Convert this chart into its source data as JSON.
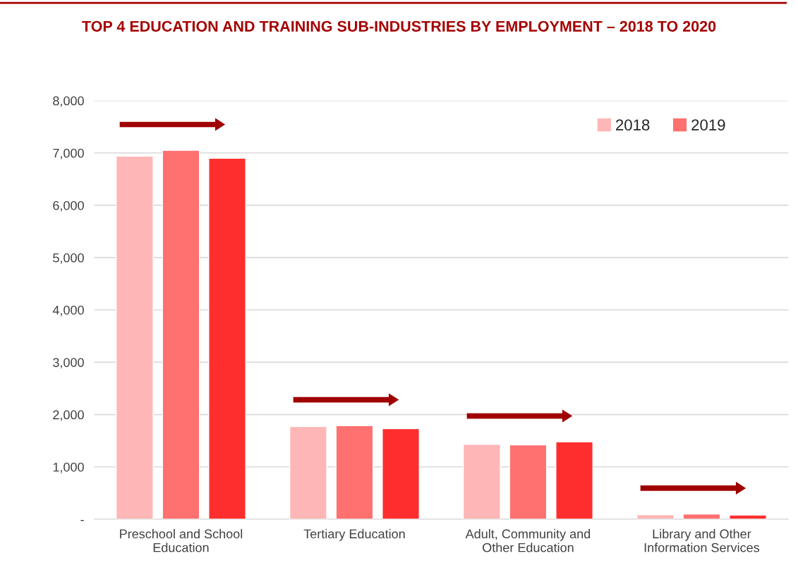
{
  "chart_data": {
    "type": "bar",
    "title": "TOP 4 EDUCATION AND TRAINING SUB-INDUSTRIES BY EMPLOYMENT – 2018 TO 2020",
    "categories": [
      "Preschool and School\nEducation",
      "Tertiary Education",
      "Adult, Community and\nOther Education",
      "Library and Other\nInformation Services"
    ],
    "series": [
      {
        "name": "2018",
        "color": "#ffb6b6",
        "values": [
          6940,
          1770,
          1430,
          85
        ]
      },
      {
        "name": "2019",
        "color": "#ff7070",
        "values": [
          7050,
          1790,
          1420,
          100
        ]
      },
      {
        "color": "#ff2e2e",
        "values": [
          6900,
          1730,
          1480,
          80
        ]
      }
    ],
    "ylim": [
      0,
      8000
    ],
    "yticks": [
      {
        "value": 0,
        "label": "-"
      },
      {
        "value": 1000,
        "label": "1,000"
      },
      {
        "value": 2000,
        "label": "2,000"
      },
      {
        "value": 3000,
        "label": "3,000"
      },
      {
        "value": 4000,
        "label": "4,000"
      },
      {
        "value": 5000,
        "label": "5,000"
      },
      {
        "value": 6000,
        "label": "6,000"
      },
      {
        "value": 7000,
        "label": "7,000"
      },
      {
        "value": 8000,
        "label": "8,000"
      }
    ],
    "grid": "y",
    "legend": "top right"
  }
}
